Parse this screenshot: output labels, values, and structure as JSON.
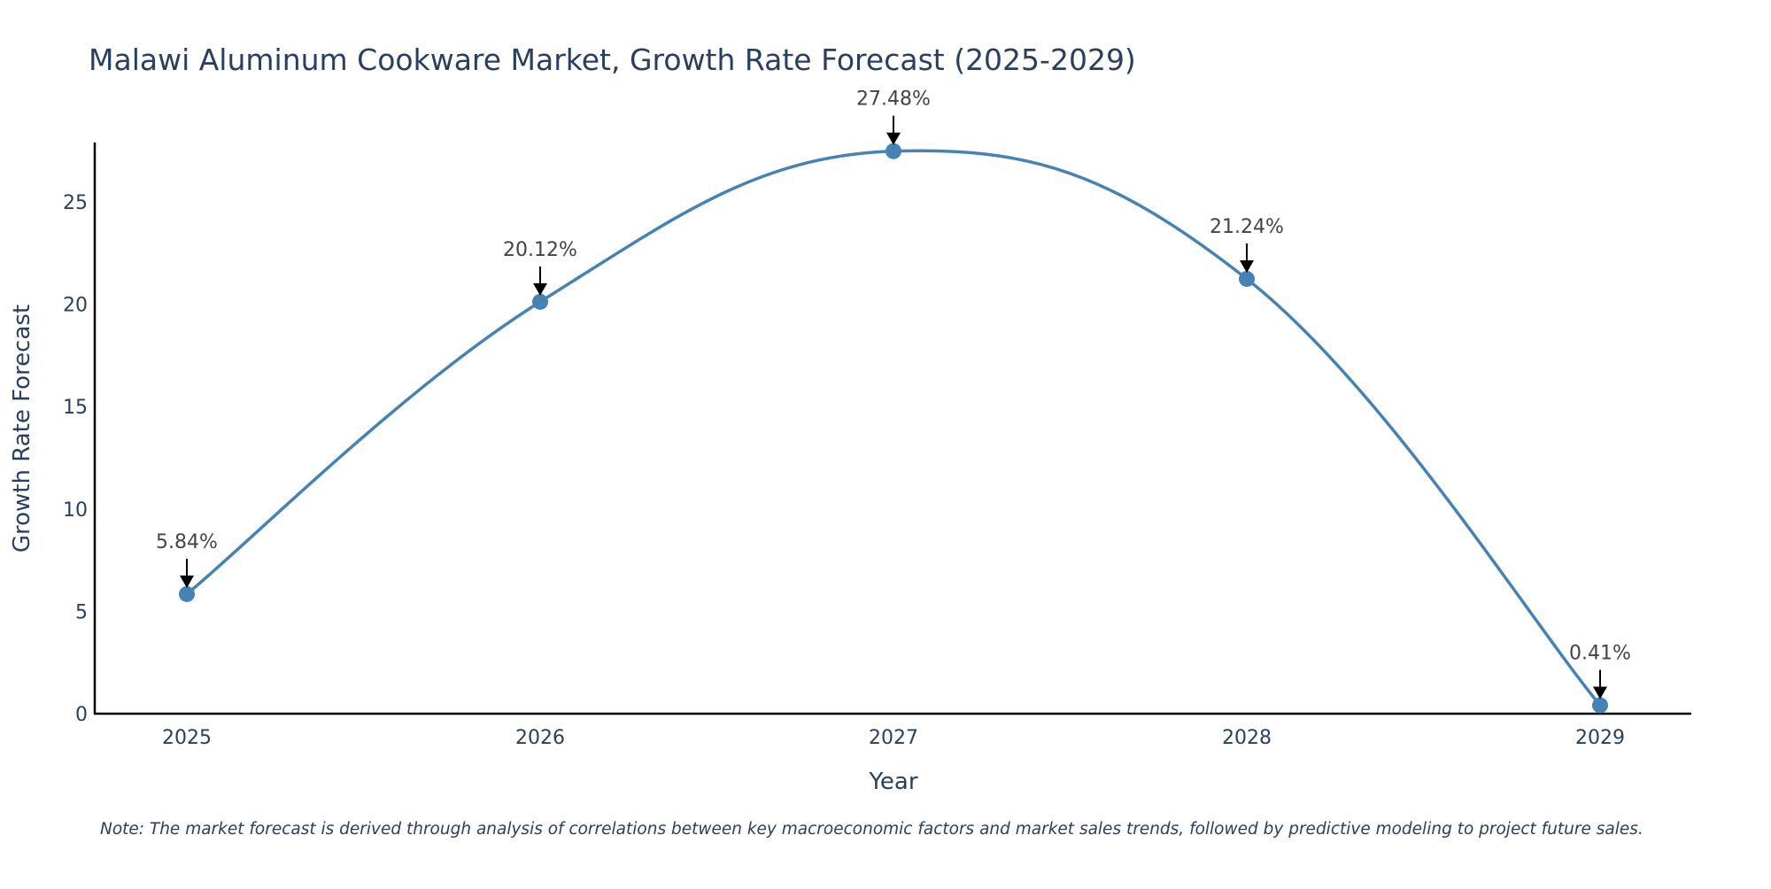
{
  "chart_data": {
    "type": "line",
    "title": "Malawi Aluminum Cookware Market, Growth Rate Forecast (2025-2029)",
    "xlabel": "Year",
    "ylabel": "Growth Rate Forecast",
    "categories": [
      "2025",
      "2026",
      "2027",
      "2028",
      "2029"
    ],
    "series": [
      {
        "name": "Growth Rate Forecast",
        "values": [
          5.84,
          20.12,
          27.48,
          21.24,
          0.41
        ]
      }
    ],
    "data_labels": [
      "5.84%",
      "20.12%",
      "27.48%",
      "21.24%",
      "0.41%"
    ],
    "y_ticks": [
      0,
      5,
      10,
      15,
      20,
      25
    ],
    "ylim": [
      0,
      27.9
    ],
    "grid": false,
    "legend": "none",
    "line_color": "#4682b4",
    "axis_color": "#000000",
    "text_color": "#2a3f5f",
    "annotation_color": "#444444",
    "note": "Note: The market forecast is derived through analysis of correlations between key macroeconomic factors and market sales trends, followed by predictive modeling to project future sales."
  }
}
